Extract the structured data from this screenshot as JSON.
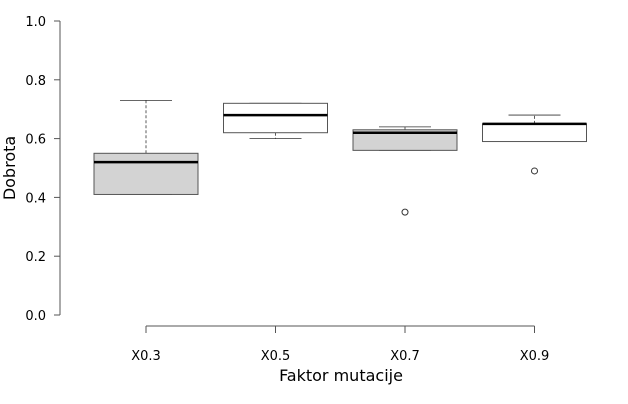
{
  "chart_data": {
    "type": "boxplot",
    "title": "",
    "xlabel": "Faktor mutacije",
    "ylabel": "Dobrota",
    "ylim": [
      0.0,
      1.0
    ],
    "yticks": [
      "0.0",
      "0.2",
      "0.4",
      "0.6",
      "0.8",
      "1.0"
    ],
    "grid": false,
    "categories": [
      "X0.3",
      "X0.5",
      "X0.7",
      "X0.9"
    ],
    "boxes": [
      {
        "category": "X0.3",
        "whisker_low": 0.41,
        "q1": 0.41,
        "median": 0.52,
        "q3": 0.55,
        "whisker_high": 0.73,
        "outliers": [],
        "fill": "#d3d3d3"
      },
      {
        "category": "X0.5",
        "whisker_low": 0.6,
        "q1": 0.62,
        "median": 0.68,
        "q3": 0.72,
        "whisker_high": 0.72,
        "outliers": [],
        "fill": "#ffffff"
      },
      {
        "category": "X0.7",
        "whisker_low": 0.56,
        "q1": 0.56,
        "median": 0.62,
        "q3": 0.63,
        "whisker_high": 0.64,
        "outliers": [
          0.35
        ],
        "fill": "#d3d3d3"
      },
      {
        "category": "X0.9",
        "whisker_low": 0.59,
        "q1": 0.59,
        "median": 0.65,
        "q3": 0.65,
        "whisker_high": 0.68,
        "outliers": [
          0.49
        ],
        "fill": "#ffffff"
      }
    ]
  }
}
